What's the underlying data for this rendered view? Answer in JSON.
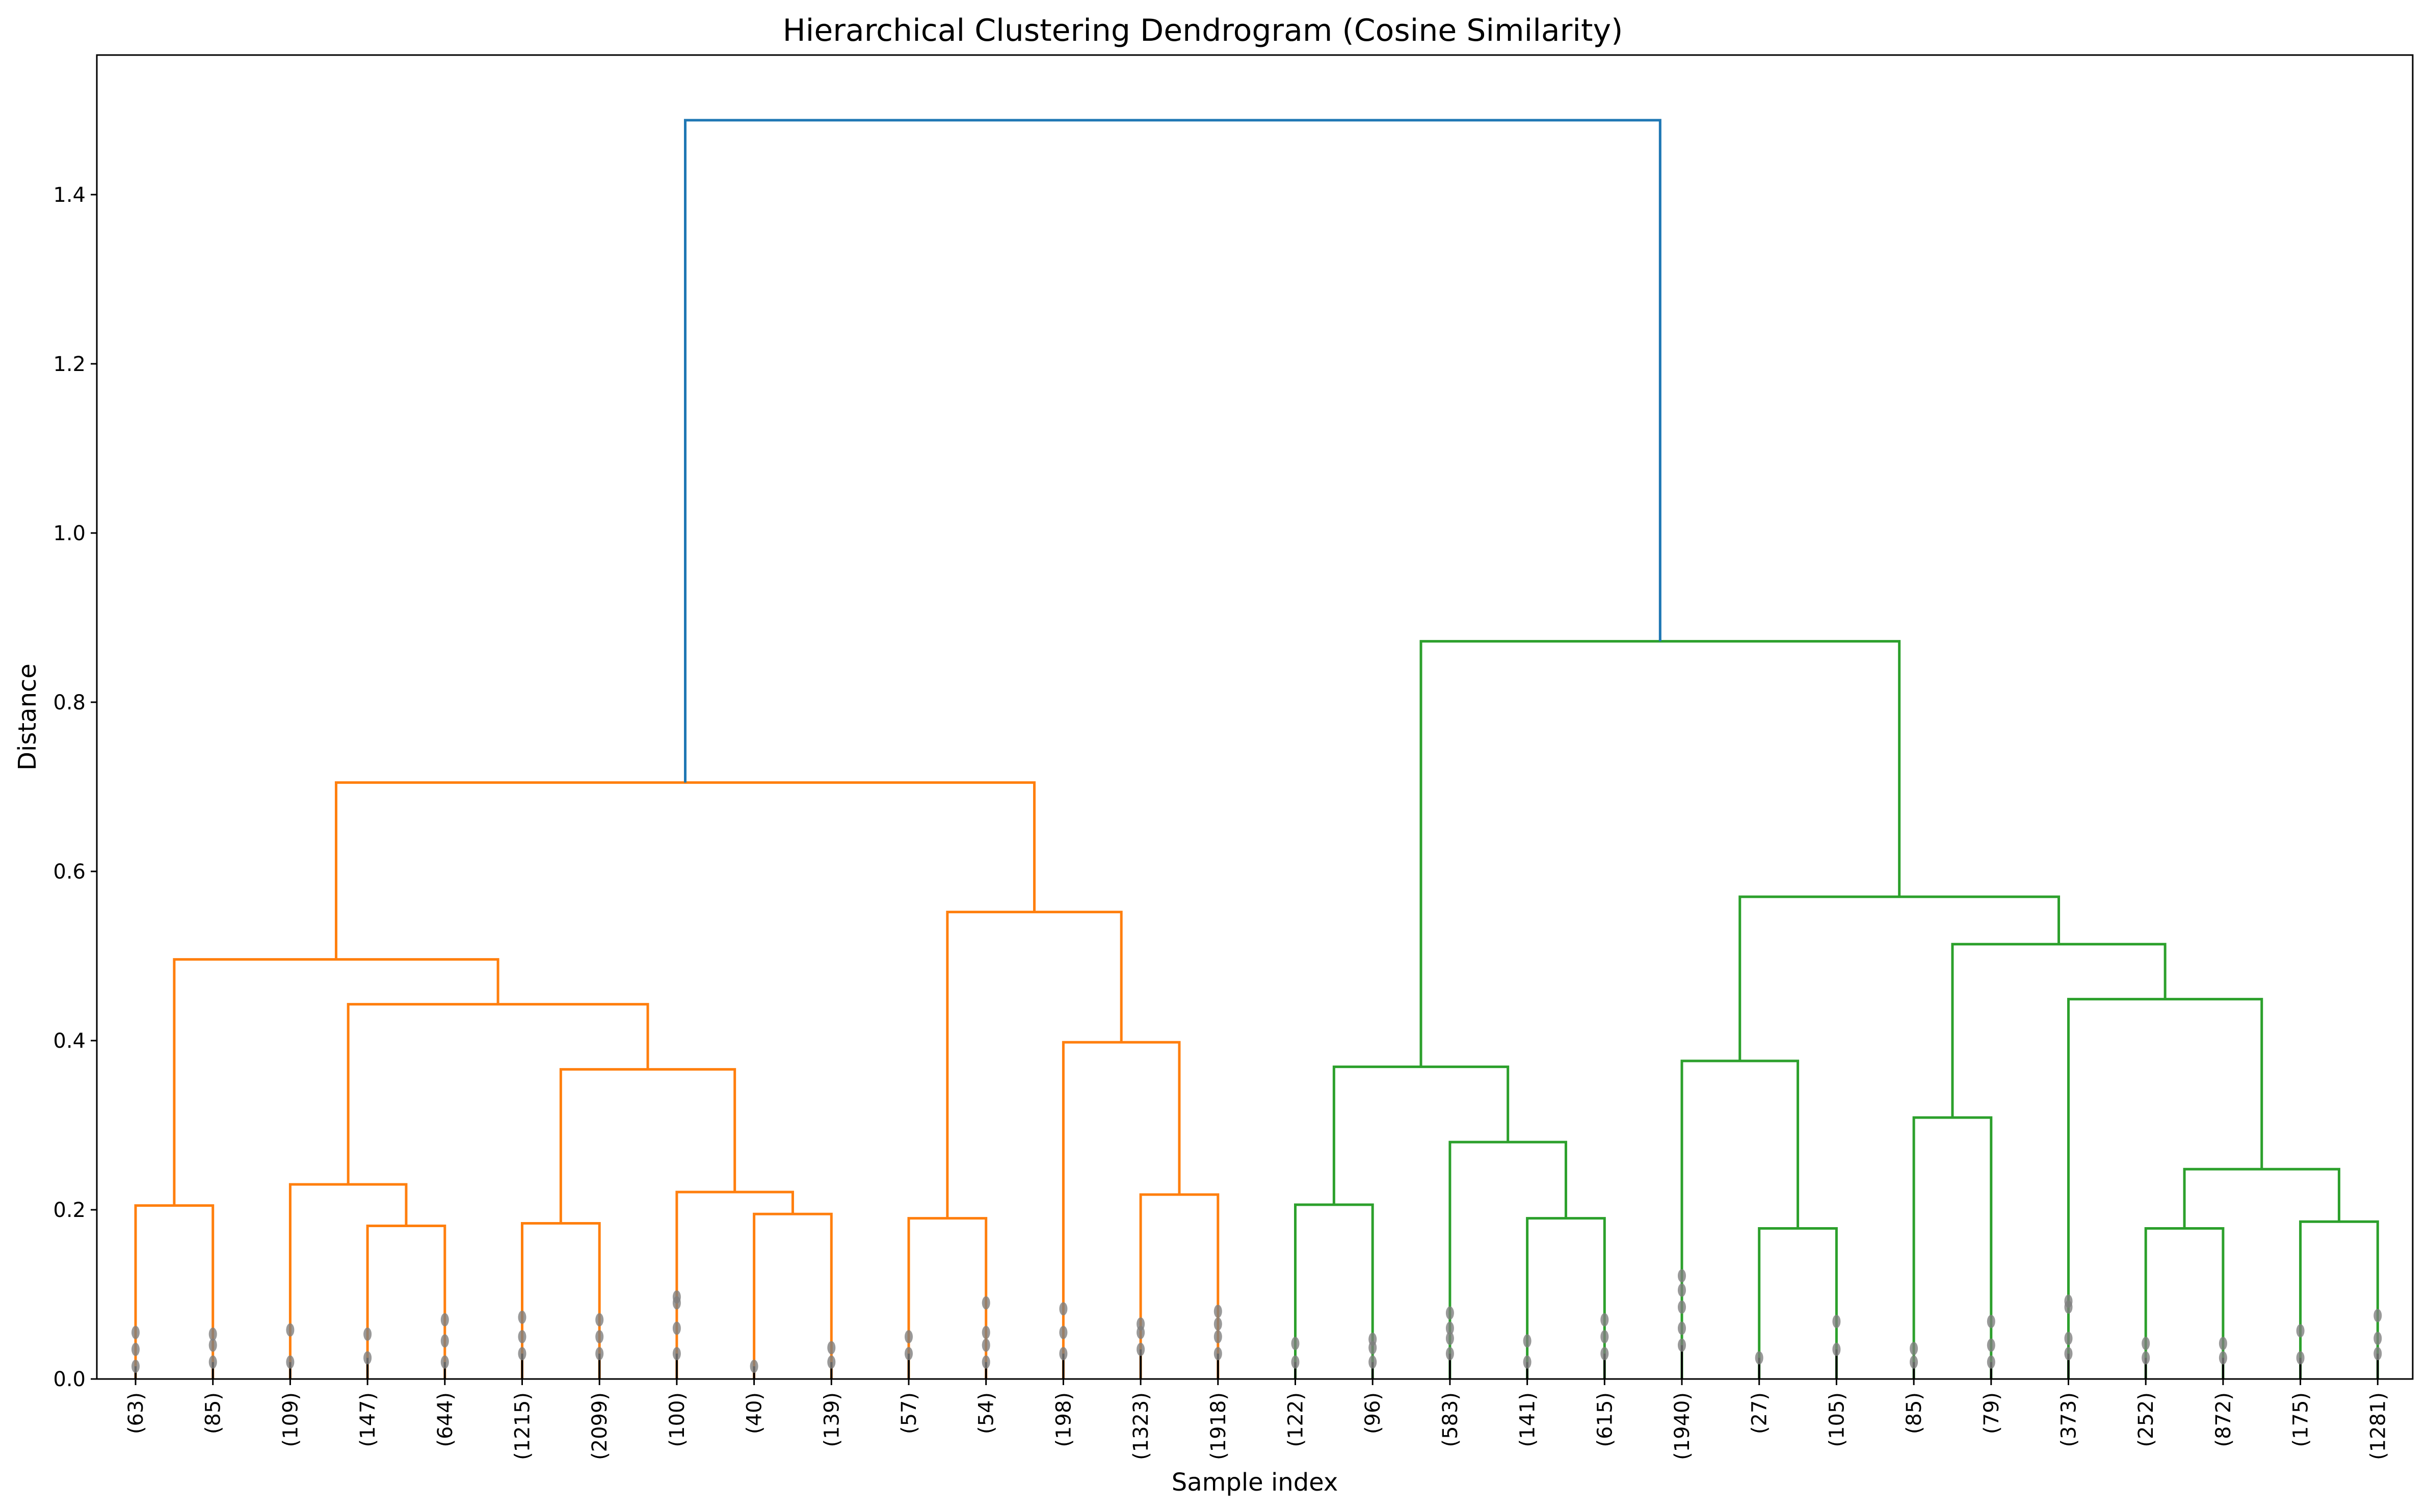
{
  "chart_data": {
    "type": "dendrogram",
    "title": "Hierarchical Clustering Dendrogram (Cosine Similarity)",
    "xlabel": "Sample index",
    "ylabel": "Distance",
    "ylim": [
      0,
      1.565
    ],
    "yticks": [
      0.0,
      0.2,
      0.4,
      0.6,
      0.8,
      1.0,
      1.2,
      1.4
    ],
    "grid": false,
    "legend": "none",
    "leaf_labels": [
      "(63)",
      "(85)",
      "(109)",
      "(147)",
      "(644)",
      "(1215)",
      "(2099)",
      "(100)",
      "(40)",
      "(139)",
      "(57)",
      "(54)",
      "(198)",
      "(1323)",
      "(1918)",
      "(122)",
      "(96)",
      "(583)",
      "(141)",
      "(615)",
      "(1940)",
      "(27)",
      "(105)",
      "(85)",
      "(79)",
      "(373)",
      "(252)",
      "(872)",
      "(175)",
      "(1281)"
    ],
    "colors": {
      "root": "#1f77b4",
      "cluster1": "#ff7f0e",
      "cluster2": "#2ca02c",
      "leaf_dots": "#7f7f7f"
    },
    "links": [
      {
        "id": "A1",
        "left": "L0",
        "right": "L1",
        "height": 0.205,
        "color": "cluster1"
      },
      {
        "id": "A2",
        "left": "L3",
        "right": "L4",
        "height": 0.181,
        "color": "cluster1"
      },
      {
        "id": "A3",
        "left": "L2",
        "right": "A2",
        "height": 0.23,
        "color": "cluster1"
      },
      {
        "id": "A4",
        "left": "L5",
        "right": "L6",
        "height": 0.184,
        "color": "cluster1"
      },
      {
        "id": "A5",
        "left": "L8",
        "right": "L9",
        "height": 0.195,
        "color": "cluster1"
      },
      {
        "id": "A6",
        "left": "L7",
        "right": "A5",
        "height": 0.221,
        "color": "cluster1"
      },
      {
        "id": "A7",
        "left": "A4",
        "right": "A6",
        "height": 0.366,
        "color": "cluster1"
      },
      {
        "id": "A8",
        "left": "A3",
        "right": "A7",
        "height": 0.443,
        "color": "cluster1"
      },
      {
        "id": "A9",
        "left": "A1",
        "right": "A8",
        "height": 0.496,
        "color": "cluster1"
      },
      {
        "id": "A10",
        "left": "L10",
        "right": "L11",
        "height": 0.19,
        "color": "cluster1"
      },
      {
        "id": "A11",
        "left": "L13",
        "right": "L14",
        "height": 0.218,
        "color": "cluster1"
      },
      {
        "id": "A12",
        "left": "L12",
        "right": "A11",
        "height": 0.398,
        "color": "cluster1"
      },
      {
        "id": "A13",
        "left": "A10",
        "right": "A12",
        "height": 0.552,
        "color": "cluster1"
      },
      {
        "id": "A14",
        "left": "A9",
        "right": "A13",
        "height": 0.705,
        "color": "cluster1"
      },
      {
        "id": "B1",
        "left": "L15",
        "right": "L16",
        "height": 0.206,
        "color": "cluster2"
      },
      {
        "id": "B2",
        "left": "L18",
        "right": "L19",
        "height": 0.19,
        "color": "cluster2"
      },
      {
        "id": "B3",
        "left": "L17",
        "right": "B2",
        "height": 0.28,
        "color": "cluster2"
      },
      {
        "id": "B4",
        "left": "B1",
        "right": "B3",
        "height": 0.369,
        "color": "cluster2"
      },
      {
        "id": "B5",
        "left": "L21",
        "right": "L22",
        "height": 0.178,
        "color": "cluster2"
      },
      {
        "id": "B6",
        "left": "L20",
        "right": "B5",
        "height": 0.376,
        "color": "cluster2"
      },
      {
        "id": "B7",
        "left": "L23",
        "right": "L24",
        "height": 0.309,
        "color": "cluster2"
      },
      {
        "id": "B8",
        "left": "L26",
        "right": "L27",
        "height": 0.178,
        "color": "cluster2"
      },
      {
        "id": "B9",
        "left": "L28",
        "right": "L29",
        "height": 0.186,
        "color": "cluster2"
      },
      {
        "id": "B10",
        "left": "B8",
        "right": "B9",
        "height": 0.248,
        "color": "cluster2"
      },
      {
        "id": "B11",
        "left": "L25",
        "right": "B10",
        "height": 0.449,
        "color": "cluster2"
      },
      {
        "id": "B12",
        "left": "B7",
        "right": "B11",
        "height": 0.514,
        "color": "cluster2"
      },
      {
        "id": "B13",
        "left": "B6",
        "right": "B12",
        "height": 0.57,
        "color": "cluster2"
      },
      {
        "id": "B14",
        "left": "B4",
        "right": "B13",
        "height": 0.872,
        "color": "cluster2"
      },
      {
        "id": "R",
        "left": "A14",
        "right": "B14",
        "height": 1.488,
        "color": "root"
      }
    ],
    "leaf_dot_heights": [
      [
        0.015,
        0.035,
        0.055
      ],
      [
        0.02,
        0.04,
        0.053
      ],
      [
        0.02,
        0.058
      ],
      [
        0.025,
        0.053
      ],
      [
        0.02,
        0.045,
        0.07
      ],
      [
        0.03,
        0.05,
        0.073
      ],
      [
        0.03,
        0.05,
        0.07
      ],
      [
        0.03,
        0.06,
        0.09,
        0.097
      ],
      [
        0.015
      ],
      [
        0.02,
        0.037
      ],
      [
        0.03,
        0.05
      ],
      [
        0.02,
        0.04,
        0.055,
        0.09
      ],
      [
        0.03,
        0.055,
        0.083
      ],
      [
        0.035,
        0.055,
        0.065
      ],
      [
        0.03,
        0.05,
        0.065,
        0.08
      ],
      [
        0.02,
        0.042
      ],
      [
        0.02,
        0.037,
        0.047
      ],
      [
        0.03,
        0.048,
        0.06,
        0.078
      ],
      [
        0.02,
        0.045
      ],
      [
        0.03,
        0.05,
        0.07
      ],
      [
        0.04,
        0.06,
        0.085,
        0.105,
        0.122
      ],
      [
        0.025
      ],
      [
        0.035,
        0.068
      ],
      [
        0.02,
        0.036
      ],
      [
        0.02,
        0.04,
        0.068
      ],
      [
        0.03,
        0.048,
        0.085,
        0.092
      ],
      [
        0.025,
        0.042
      ],
      [
        0.025,
        0.042
      ],
      [
        0.025,
        0.057
      ],
      [
        0.03,
        0.048,
        0.075
      ]
    ]
  }
}
